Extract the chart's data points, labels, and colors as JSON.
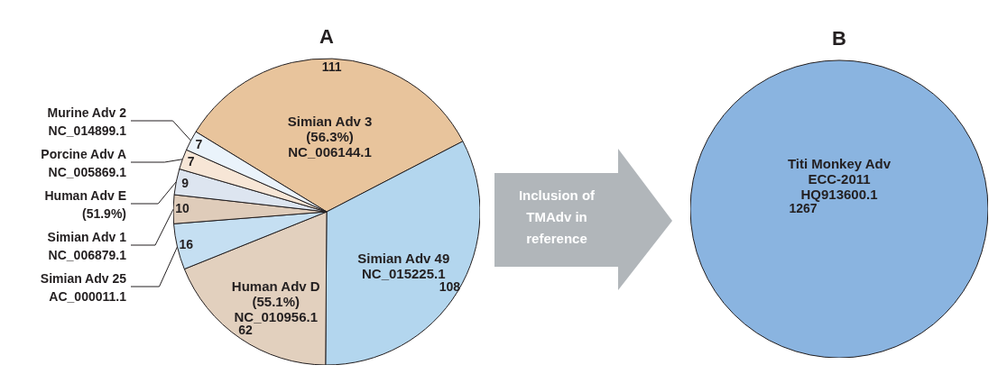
{
  "chart_data": [
    {
      "type": "pie",
      "title": "A",
      "categories": [
        "Simian Adv 3\n(56.3%)\nNC_006144.1",
        "Simian Adv 49\nNC_015225.1",
        "Human Adv D\n(55.1%)\nNC_010956.1",
        "Simian Adv 25\nAC_000011.1",
        "Simian Adv 1\nNC_006879.1",
        "Human Adv E\n(51.9%)",
        "Porcine Adv A\nNC_005869.1",
        "Murine Adv 2\nNC_014899.1"
      ],
      "values": [
        111,
        108,
        62,
        16,
        10,
        9,
        7,
        7
      ],
      "colors": [
        "#e8c49c",
        "#b3d6ee",
        "#e2d0be",
        "#c5dff2",
        "#dfccba",
        "#dde5f0",
        "#f7e6d6",
        "#eaf3fb"
      ],
      "data_labels": true,
      "annotations": [
        "Inclusion of TMAdv in reference"
      ]
    },
    {
      "type": "pie",
      "title": "B",
      "categories": [
        "Titi Monkey Adv\nECC-2011\nHQ913600.1"
      ],
      "values": [
        1267
      ],
      "colors": [
        "#8ab4e0"
      ],
      "data_labels": true
    }
  ]
}
